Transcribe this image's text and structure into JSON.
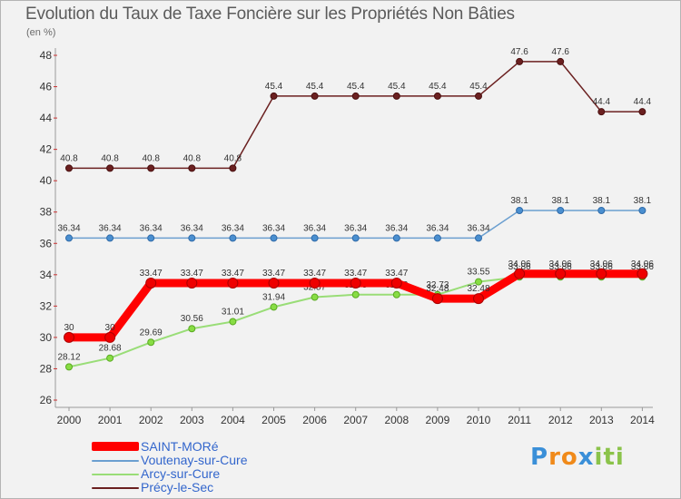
{
  "chart_data": {
    "type": "line",
    "title": "Evolution du Taux de Taxe Foncière sur les Propriétés Non Bâties",
    "subtitle": "(en %)",
    "xlabel": "",
    "ylabel": "",
    "categories": [
      "2000",
      "2001",
      "2002",
      "2003",
      "2004",
      "2005",
      "2006",
      "2007",
      "2008",
      "2009",
      "2010",
      "2011",
      "2012",
      "2013",
      "2014"
    ],
    "ylim": [
      26,
      48
    ],
    "yticks": [
      26,
      28,
      30,
      32,
      34,
      36,
      38,
      40,
      42,
      44,
      46,
      48
    ],
    "grid": false,
    "legend_position": "bottom-left",
    "series": [
      {
        "name": "Précy-le-Sec",
        "color": "#6b2020",
        "values": [
          40.8,
          40.8,
          40.8,
          40.8,
          40.8,
          45.4,
          45.4,
          45.4,
          45.4,
          45.4,
          45.4,
          47.6,
          47.6,
          44.4,
          44.4
        ],
        "labels": [
          "40.8",
          "40.8",
          "40.8",
          "40.8",
          "40.8",
          "45.4",
          "45.4",
          "45.4",
          "45.4",
          "45.4",
          "45.4",
          "47.6",
          "47.6",
          "44.4",
          "44.4"
        ]
      },
      {
        "name": "Voutenay-sur-Cure",
        "color": "#6b9fd0",
        "values": [
          36.34,
          36.34,
          36.34,
          36.34,
          36.34,
          36.34,
          36.34,
          36.34,
          36.34,
          36.34,
          36.34,
          38.1,
          38.1,
          38.1,
          38.1
        ],
        "labels": [
          "36.34",
          "36.34",
          "36.34",
          "36.34",
          "36.34",
          "36.34",
          "36.34",
          "36.34",
          "36.34",
          "36.34",
          "36.34",
          "38.1",
          "38.1",
          "38.1",
          "38.1"
        ]
      },
      {
        "name": "Arcy-sur-Cure",
        "color": "#99dd77",
        "values": [
          28.12,
          28.68,
          29.69,
          30.56,
          31.01,
          31.94,
          32.57,
          32.73,
          32.73,
          32.73,
          33.55,
          33.86,
          33.86,
          33.86,
          33.86
        ],
        "labels": [
          "28.12",
          "28.68",
          "29.69",
          "30.56",
          "31.01",
          "31.94",
          "32.57",
          "32.73",
          "32.73",
          "32.73",
          "33.55",
          "33.86",
          "33.86",
          "33.86",
          "33.86"
        ]
      },
      {
        "name": "SAINT-MORé",
        "color": "#ff0000",
        "values": [
          30,
          30,
          33.47,
          33.47,
          33.47,
          33.47,
          33.47,
          33.47,
          33.47,
          32.48,
          32.48,
          34.06,
          34.06,
          34.06,
          34.06
        ],
        "labels": [
          "30",
          "30",
          "33.47",
          "33.47",
          "33.47",
          "33.47",
          "33.47",
          "33.47",
          "33.47",
          "32.48",
          "32.48",
          "34.06",
          "34.06",
          "34.06",
          "34.06"
        ]
      }
    ],
    "legend": [
      "SAINT-MORé",
      "Voutenay-sur-Cure",
      "Arcy-sur-Cure",
      "Précy-le-Sec"
    ]
  },
  "logo": {
    "text": [
      "P",
      "r",
      "o",
      "x",
      "i",
      "t",
      "i"
    ],
    "colors": [
      "#3a8fd8",
      "#f08a1a",
      "#f08a1a",
      "#3a8fd8",
      "#8bc34a",
      "#8bc34a",
      "#8bc34a"
    ]
  }
}
